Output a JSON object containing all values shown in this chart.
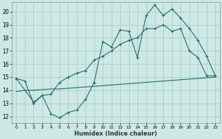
{
  "xlabel": "Humidex (Indice chaleur)",
  "xlim": [
    -0.5,
    23.5
  ],
  "ylim": [
    11.5,
    20.7
  ],
  "yticks": [
    12,
    13,
    14,
    15,
    16,
    17,
    18,
    19,
    20
  ],
  "xticks": [
    0,
    1,
    2,
    3,
    4,
    5,
    6,
    7,
    8,
    9,
    10,
    11,
    12,
    13,
    14,
    15,
    16,
    17,
    18,
    19,
    20,
    21,
    22,
    23
  ],
  "bg_color": "#cde8e5",
  "grid_color": "#a8ccca",
  "line_color": "#1e6b65",
  "line1_x": [
    0,
    1,
    2,
    3,
    4,
    5,
    6,
    7,
    8,
    9,
    10,
    11,
    12,
    13,
    14,
    15,
    16,
    17,
    18,
    19,
    20,
    21,
    22,
    23
  ],
  "line1_y": [
    14.9,
    14.7,
    13.0,
    13.6,
    12.2,
    11.9,
    12.3,
    12.5,
    13.3,
    14.6,
    17.7,
    17.3,
    18.6,
    18.5,
    16.5,
    19.7,
    20.5,
    19.7,
    20.2,
    19.5,
    18.7,
    17.8,
    16.6,
    15.1
  ],
  "line2_x": [
    0,
    2,
    3,
    4,
    5,
    6,
    7,
    8,
    9,
    10,
    11,
    12,
    13,
    14,
    15,
    16,
    17,
    18,
    19,
    20,
    21,
    22,
    23
  ],
  "line2_y": [
    14.9,
    13.1,
    13.6,
    13.7,
    14.6,
    15.0,
    15.3,
    15.5,
    16.3,
    16.6,
    17.0,
    17.5,
    17.8,
    18.0,
    18.7,
    18.7,
    19.0,
    18.5,
    18.7,
    17.0,
    16.5,
    15.1,
    15.1
  ],
  "line3_x": [
    0,
    1,
    2,
    3,
    4,
    5,
    6,
    7,
    8,
    9,
    10,
    11,
    12,
    13,
    14,
    15,
    16,
    17,
    18,
    19,
    20,
    21,
    22,
    23
  ],
  "line3_y": [
    13.9,
    14.0,
    14.0,
    14.05,
    14.1,
    14.1,
    14.15,
    14.2,
    14.25,
    14.3,
    14.35,
    14.4,
    14.45,
    14.5,
    14.55,
    14.6,
    14.65,
    14.7,
    14.75,
    14.8,
    14.85,
    14.9,
    14.95,
    15.0
  ]
}
